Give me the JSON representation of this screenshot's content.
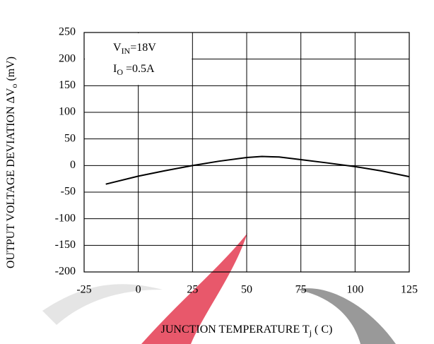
{
  "chart_data": {
    "type": "line",
    "x_label": [
      "JUNCTION TEMPERATURE T",
      "j",
      "  ( C)"
    ],
    "y_label": [
      "OUTPUT VOLTAGE DEVIATION  ",
      "ΔV",
      "o",
      "  (mV)"
    ],
    "annotations": [
      [
        "V",
        "IN",
        "=18V"
      ],
      [
        "I",
        "O",
        " =0.5A"
      ]
    ],
    "x": [
      -15,
      0,
      12,
      25,
      37,
      50,
      57,
      65,
      75,
      87,
      100,
      112,
      125
    ],
    "series": [
      {
        "color": "#000000",
        "values": [
          -35,
          -20,
          -10,
          0,
          8,
          15,
          17,
          16,
          11,
          5,
          -2,
          -10,
          -21
        ]
      }
    ],
    "xlim": [
      -25,
      125
    ],
    "xticks": [
      -25,
      0,
      25,
      50,
      75,
      100,
      125
    ],
    "ylim": [
      -200,
      250
    ],
    "yticks": [
      -200,
      -150,
      -100,
      -50,
      0,
      50,
      100,
      150,
      200,
      250
    ],
    "grid": true
  }
}
